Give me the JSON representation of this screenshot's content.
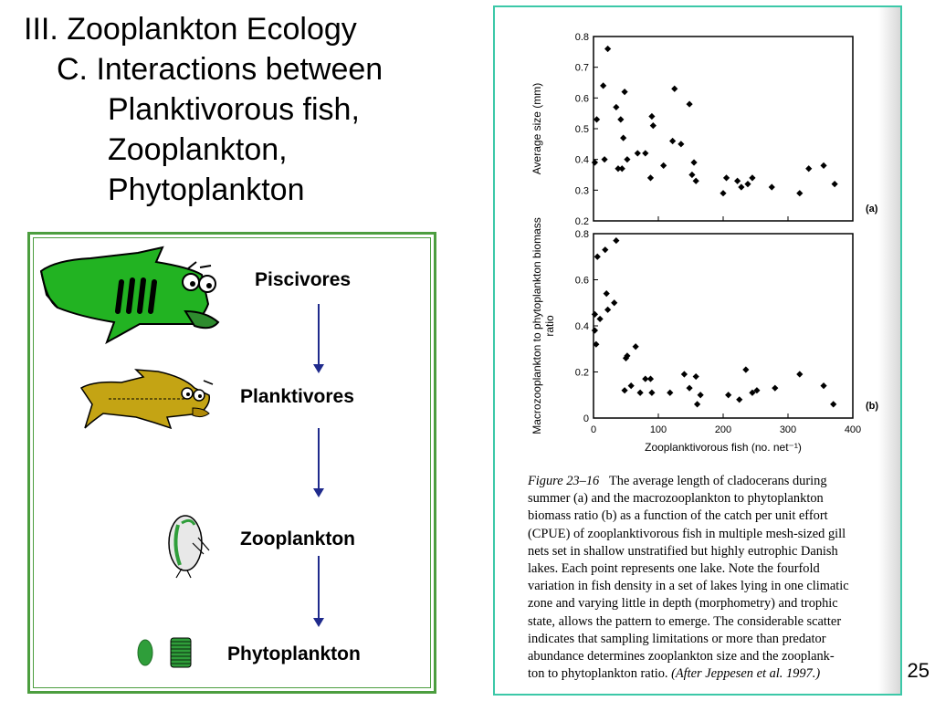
{
  "slide": {
    "title": "III. Zooplankton Ecology",
    "subtitle_lines": [
      "C. Interactions between",
      "Planktivorous fish,",
      "Zooplankton,",
      "Phytoplankton"
    ],
    "page_number": "25"
  },
  "food_chain": {
    "levels": [
      {
        "label": "Piscivores",
        "icon": "large-fish-icon"
      },
      {
        "label": "Planktivores",
        "icon": "small-fish-icon"
      },
      {
        "label": "Zooplankton",
        "icon": "daphnia-icon"
      },
      {
        "label": "Phytoplankton",
        "icon": "algae-icon"
      }
    ],
    "colors": {
      "border": "#4c9e3f",
      "arrow": "#1f2a8c",
      "piscivore": "#22b322",
      "planktivore": "#b89a10",
      "algae": "#2f9e3a"
    }
  },
  "chart_data": [
    {
      "type": "scatter",
      "panel_label": "(a)",
      "xlabel": "",
      "ylabel": "Average size (mm)",
      "xlim": [
        0,
        400
      ],
      "ylim": [
        0.2,
        0.8
      ],
      "yticks": [
        "0.2",
        "0.3",
        "0.4",
        "0.5",
        "0.6",
        "0.7",
        "0.8"
      ],
      "points": [
        [
          2,
          0.39
        ],
        [
          5,
          0.53
        ],
        [
          15,
          0.64
        ],
        [
          17,
          0.4
        ],
        [
          22,
          0.76
        ],
        [
          35,
          0.57
        ],
        [
          38,
          0.37
        ],
        [
          42,
          0.53
        ],
        [
          44,
          0.37
        ],
        [
          46,
          0.47
        ],
        [
          48,
          0.62
        ],
        [
          52,
          0.4
        ],
        [
          68,
          0.42
        ],
        [
          80,
          0.42
        ],
        [
          88,
          0.34
        ],
        [
          90,
          0.54
        ],
        [
          92,
          0.51
        ],
        [
          108,
          0.38
        ],
        [
          122,
          0.46
        ],
        [
          125,
          0.63
        ],
        [
          135,
          0.45
        ],
        [
          148,
          0.58
        ],
        [
          152,
          0.35
        ],
        [
          155,
          0.39
        ],
        [
          158,
          0.33
        ],
        [
          200,
          0.29
        ],
        [
          205,
          0.34
        ],
        [
          222,
          0.33
        ],
        [
          228,
          0.31
        ],
        [
          238,
          0.32
        ],
        [
          245,
          0.34
        ],
        [
          275,
          0.31
        ],
        [
          318,
          0.29
        ],
        [
          332,
          0.37
        ],
        [
          355,
          0.38
        ],
        [
          372,
          0.32
        ]
      ]
    },
    {
      "type": "scatter",
      "panel_label": "(b)",
      "xlabel": "Zooplanktivorous fish (no. net⁻¹)",
      "ylabel": "Macrozooplankton to phytoplankton biomass ratio",
      "xlim": [
        0,
        400
      ],
      "ylim": [
        0,
        0.8
      ],
      "xticks": [
        "0",
        "100",
        "200",
        "300",
        "400"
      ],
      "yticks": [
        "0",
        "0.2",
        "0.4",
        "0.6",
        "0.8"
      ],
      "points": [
        [
          2,
          0.38
        ],
        [
          2,
          0.45
        ],
        [
          4,
          0.32
        ],
        [
          6,
          0.7
        ],
        [
          10,
          0.43
        ],
        [
          18,
          0.73
        ],
        [
          20,
          0.54
        ],
        [
          22,
          0.47
        ],
        [
          32,
          0.5
        ],
        [
          35,
          0.77
        ],
        [
          48,
          0.12
        ],
        [
          50,
          0.26
        ],
        [
          52,
          0.27
        ],
        [
          58,
          0.14
        ],
        [
          65,
          0.31
        ],
        [
          72,
          0.11
        ],
        [
          80,
          0.17
        ],
        [
          88,
          0.17
        ],
        [
          90,
          0.11
        ],
        [
          118,
          0.11
        ],
        [
          140,
          0.19
        ],
        [
          148,
          0.13
        ],
        [
          158,
          0.18
        ],
        [
          160,
          0.06
        ],
        [
          165,
          0.1
        ],
        [
          208,
          0.1
        ],
        [
          225,
          0.08
        ],
        [
          235,
          0.21
        ],
        [
          245,
          0.11
        ],
        [
          252,
          0.12
        ],
        [
          280,
          0.13
        ],
        [
          318,
          0.19
        ],
        [
          355,
          0.14
        ],
        [
          370,
          0.06
        ]
      ]
    }
  ],
  "caption": {
    "label": "Figure 23–16",
    "lines": [
      "The average length of cladocerans during",
      "summer (a) and the macrozooplankton to phytoplankton",
      "biomass ratio (b) as a function of the catch per unit effort",
      "(CPUE) of zooplanktivorous fish in multiple mesh-sized gill",
      "nets set in shallow unstratified but highly eutrophic Danish",
      "lakes. Each point represents one lake. Note the fourfold",
      "variation in fish density in a set of lakes lying in one climatic",
      "zone and varying little in depth (morphometry) and trophic",
      "state, allows the pattern to emerge. The considerable scatter",
      "indicates that sampling limitations or more than predator",
      "abundance determines zooplankton size and the zooplank-"
    ],
    "last_line_start": "ton to phytoplankton ratio.",
    "source": "(After Jeppesen et al. 1997.)"
  }
}
